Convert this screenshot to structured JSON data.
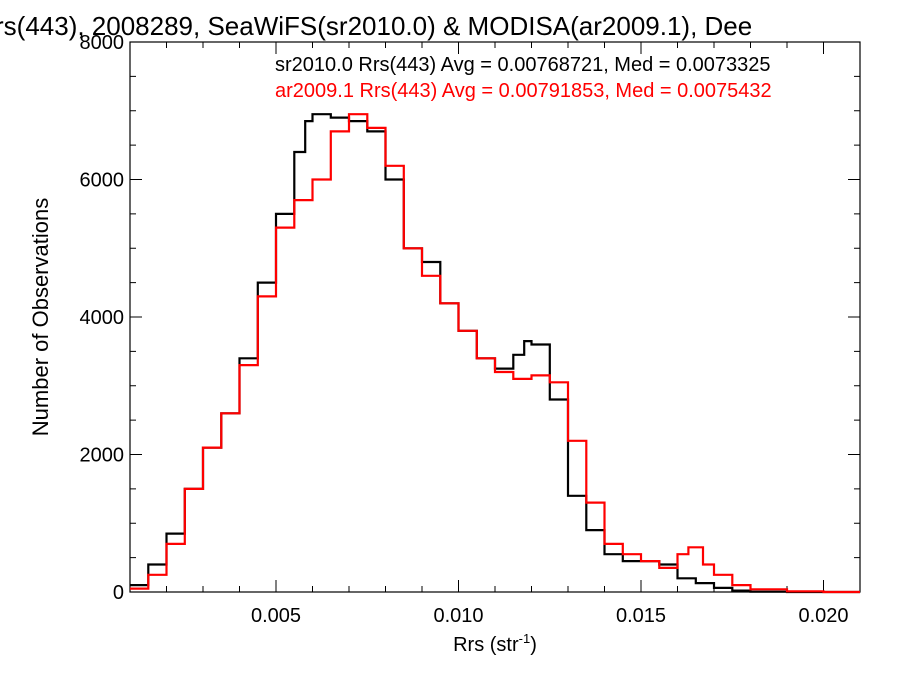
{
  "chart_data": {
    "type": "line",
    "title": "rs(443), 2008289, SeaWiFS(sr2010.0) & MODISA(ar2009.1), Dee",
    "xlabel": "Rrs (str",
    "xlabel_sup": "-1",
    "xlabel_close": ")",
    "ylabel": "Number of Observations",
    "xlim": [
      0.001,
      0.021
    ],
    "ylim": [
      0,
      8000
    ],
    "xticks": [
      {
        "value": 0.005,
        "label": "0.005"
      },
      {
        "value": 0.01,
        "label": "0.010"
      },
      {
        "value": 0.015,
        "label": "0.015"
      },
      {
        "value": 0.02,
        "label": "0.020"
      }
    ],
    "yticks": [
      {
        "value": 0,
        "label": "0"
      },
      {
        "value": 2000,
        "label": "2000"
      },
      {
        "value": 4000,
        "label": "4000"
      },
      {
        "value": 6000,
        "label": "6000"
      },
      {
        "value": 8000,
        "label": "8000"
      }
    ],
    "grid": false,
    "legend_position": "top-right",
    "series": [
      {
        "legend": "sr2010.0 Rrs(443) Avg = 0.00768721, Med = 0.0073325",
        "color": "#000000",
        "points": [
          [
            0.001,
            100
          ],
          [
            0.0015,
            400
          ],
          [
            0.002,
            850
          ],
          [
            0.0025,
            1500
          ],
          [
            0.003,
            2100
          ],
          [
            0.0035,
            2600
          ],
          [
            0.004,
            3400
          ],
          [
            0.0045,
            4500
          ],
          [
            0.005,
            5500
          ],
          [
            0.0055,
            6400
          ],
          [
            0.0058,
            6850
          ],
          [
            0.006,
            6950
          ],
          [
            0.0065,
            6900
          ],
          [
            0.007,
            6850
          ],
          [
            0.0075,
            6700
          ],
          [
            0.008,
            6000
          ],
          [
            0.0085,
            5000
          ],
          [
            0.009,
            4800
          ],
          [
            0.0095,
            4200
          ],
          [
            0.01,
            3800
          ],
          [
            0.0105,
            3400
          ],
          [
            0.011,
            3250
          ],
          [
            0.0115,
            3450
          ],
          [
            0.0118,
            3650
          ],
          [
            0.012,
            3600
          ],
          [
            0.0125,
            2800
          ],
          [
            0.013,
            1400
          ],
          [
            0.0135,
            900
          ],
          [
            0.014,
            550
          ],
          [
            0.0145,
            450
          ],
          [
            0.015,
            450
          ],
          [
            0.0155,
            400
          ],
          [
            0.016,
            200
          ],
          [
            0.0165,
            130
          ],
          [
            0.017,
            60
          ],
          [
            0.0175,
            20
          ],
          [
            0.018,
            5
          ],
          [
            0.019,
            0
          ],
          [
            0.021,
            0
          ]
        ]
      },
      {
        "legend": "ar2009.1 Rrs(443) Avg = 0.00791853, Med = 0.0075432",
        "color": "#ff0000",
        "points": [
          [
            0.001,
            50
          ],
          [
            0.0015,
            250
          ],
          [
            0.002,
            700
          ],
          [
            0.0025,
            1500
          ],
          [
            0.003,
            2100
          ],
          [
            0.0035,
            2600
          ],
          [
            0.004,
            3300
          ],
          [
            0.0045,
            4300
          ],
          [
            0.005,
            5300
          ],
          [
            0.0055,
            5700
          ],
          [
            0.006,
            6000
          ],
          [
            0.0065,
            6700
          ],
          [
            0.007,
            6950
          ],
          [
            0.0075,
            6750
          ],
          [
            0.008,
            6200
          ],
          [
            0.0085,
            5000
          ],
          [
            0.009,
            4600
          ],
          [
            0.0095,
            4200
          ],
          [
            0.01,
            3800
          ],
          [
            0.0105,
            3400
          ],
          [
            0.011,
            3200
          ],
          [
            0.0115,
            3100
          ],
          [
            0.012,
            3150
          ],
          [
            0.0125,
            3050
          ],
          [
            0.013,
            2200
          ],
          [
            0.0135,
            1300
          ],
          [
            0.014,
            700
          ],
          [
            0.0145,
            550
          ],
          [
            0.015,
            450
          ],
          [
            0.0155,
            350
          ],
          [
            0.016,
            550
          ],
          [
            0.0163,
            650
          ],
          [
            0.0167,
            400
          ],
          [
            0.017,
            250
          ],
          [
            0.0175,
            100
          ],
          [
            0.018,
            40
          ],
          [
            0.019,
            10
          ],
          [
            0.02,
            0
          ],
          [
            0.021,
            0
          ]
        ]
      }
    ]
  }
}
